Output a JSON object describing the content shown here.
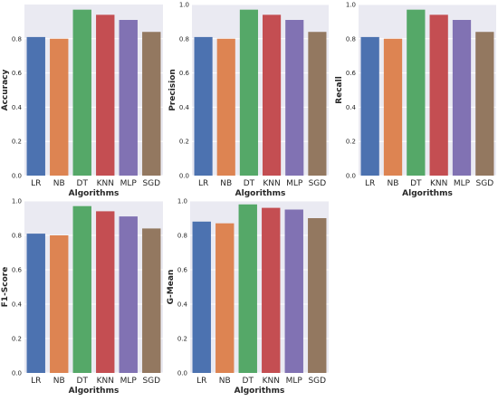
{
  "chart_data": [
    {
      "type": "bar",
      "categories": [
        "LR",
        "NB",
        "DT",
        "KNN",
        "MLP",
        "SGD"
      ],
      "values": [
        0.81,
        0.8,
        0.97,
        0.94,
        0.91,
        0.84
      ],
      "xlabel": "Algorithms",
      "ylabel": "Accuracy",
      "ylim": [
        0,
        1.0
      ],
      "yticks": [
        "0.0",
        "0.2",
        "0.4",
        "0.6",
        "0.8"
      ],
      "grid": true
    },
    {
      "type": "bar",
      "categories": [
        "LR",
        "NB",
        "DT",
        "KNN",
        "MLP",
        "SGD"
      ],
      "values": [
        0.81,
        0.8,
        0.97,
        0.94,
        0.91,
        0.84
      ],
      "xlabel": "Algorithms",
      "ylabel": "Precision",
      "ylim": [
        0,
        1.0
      ],
      "yticks": [
        "0.0",
        "0.2",
        "0.4",
        "0.6",
        "0.8",
        "1.0"
      ],
      "grid": true
    },
    {
      "type": "bar",
      "categories": [
        "LR",
        "NB",
        "DT",
        "KNN",
        "MLP",
        "SGD"
      ],
      "values": [
        0.81,
        0.8,
        0.97,
        0.94,
        0.91,
        0.84
      ],
      "xlabel": "Algorithms",
      "ylabel": "Recall",
      "ylim": [
        0,
        1.0
      ],
      "yticks": [
        "0.0",
        "0.2",
        "0.4",
        "0.6",
        "0.8",
        "1.0"
      ],
      "grid": true
    },
    {
      "type": "bar",
      "categories": [
        "LR",
        "NB",
        "DT",
        "KNN",
        "MLP",
        "SGD"
      ],
      "values": [
        0.81,
        0.8,
        0.97,
        0.94,
        0.91,
        0.84
      ],
      "xlabel": "Algorithms",
      "ylabel": "F1-Score",
      "ylim": [
        0,
        1.0
      ],
      "yticks": [
        "0.0",
        "0.2",
        "0.4",
        "0.6",
        "0.8",
        "1.0"
      ],
      "grid": true
    },
    {
      "type": "bar",
      "categories": [
        "LR",
        "NB",
        "DT",
        "KNN",
        "MLP",
        "SGD"
      ],
      "values": [
        0.88,
        0.87,
        0.98,
        0.96,
        0.95,
        0.9
      ],
      "xlabel": "Algorithms",
      "ylabel": "G-Mean",
      "ylim": [
        0,
        1.0
      ],
      "yticks": [
        "0.0",
        "0.2",
        "0.4",
        "0.6",
        "0.8",
        "1.0"
      ],
      "grid": true
    }
  ],
  "colors": {
    "bars": [
      "#4c72b0",
      "#dd8452",
      "#55a868",
      "#c44e52",
      "#8172b3",
      "#937860"
    ],
    "plot_background": "#eaeaf2",
    "grid": "#ffffff"
  }
}
